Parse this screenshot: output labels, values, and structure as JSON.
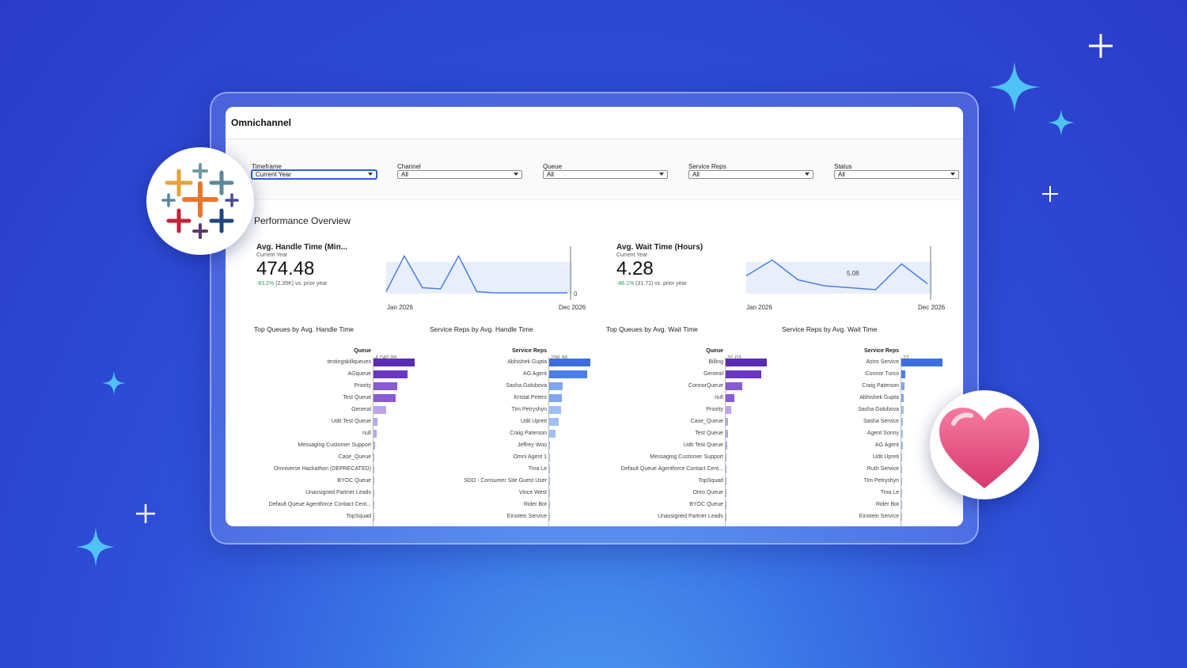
{
  "app": {
    "title": "Omnichannel"
  },
  "filters": [
    {
      "label": "Timeframe",
      "value": "Current Year"
    },
    {
      "label": "Channel",
      "value": "All"
    },
    {
      "label": "Queue",
      "value": "All"
    },
    {
      "label": "Service Reps",
      "value": "All"
    },
    {
      "label": "Status",
      "value": "All"
    }
  ],
  "section": {
    "title": "Performance Overview"
  },
  "kpis": [
    {
      "title": "Avg. Handle Time (Min...",
      "period": "Current Year",
      "value": "474.48",
      "change_pct": "-83.2%",
      "change_text": "(2.35K) vs. prior year",
      "axis_start": "Jan 2026",
      "axis_end": "Dec 2026",
      "end_label": "0",
      "trend": [
        0.05,
        0.95,
        0.15,
        0.12,
        0.95,
        0.05,
        0.02,
        0.02,
        0.02,
        0.02,
        0.02
      ]
    },
    {
      "title": "Avg. Wait Time (Hours)",
      "period": "Current Year",
      "value": "4.28",
      "change_pct": "-88.1%",
      "change_text": "(31.71) vs. prior year",
      "axis_start": "Jan 2026",
      "axis_end": "Dec 2026",
      "end_label": "5.08",
      "trend": [
        0.45,
        0.85,
        0.35,
        0.2,
        0.15,
        0.1,
        0.75,
        0.25
      ]
    }
  ],
  "bar_charts": [
    {
      "title": "Top Queues by Avg. Handle Time",
      "header": "Queue",
      "top_value": "4,040.88",
      "color": "#5b2bb5",
      "rows": [
        {
          "label": "testingskillqueues",
          "value": 1.0
        },
        {
          "label": "AGqueue",
          "value": 0.83
        },
        {
          "label": "Priority",
          "value": 0.57
        },
        {
          "label": "Test Queue",
          "value": 0.53
        },
        {
          "label": "General",
          "value": 0.31
        },
        {
          "label": "Udit Test Queue",
          "value": 0.1
        },
        {
          "label": "null",
          "value": 0.08
        },
        {
          "label": "Messaging Customer Support",
          "value": 0.03
        },
        {
          "label": "Case_Queue",
          "value": 0.02
        },
        {
          "label": "Omniverse Hackathon (DEPRECATED)",
          "value": 0.01
        },
        {
          "label": "BYOC Queue",
          "value": 0.01
        },
        {
          "label": "Unassigned Partner Leads",
          "value": 0.01
        },
        {
          "label": "Default Queue Agentforce Contact Cent...",
          "value": 0.01
        },
        {
          "label": "TopSquad",
          "value": 0.01
        }
      ]
    },
    {
      "title": "Service Reps by Avg. Handle Time",
      "header": "Service Reps",
      "top_value": "296.96",
      "color": "#3b6fe0",
      "rows": [
        {
          "label": "Abhishek Gupta",
          "value": 1.0
        },
        {
          "label": "AG Agent",
          "value": 0.93
        },
        {
          "label": "Sasha Golubova",
          "value": 0.32
        },
        {
          "label": "Kristal Peters",
          "value": 0.3
        },
        {
          "label": "Tim Petryshyn",
          "value": 0.28
        },
        {
          "label": "Udit Upreti",
          "value": 0.24
        },
        {
          "label": "Craig Paterson",
          "value": 0.16
        },
        {
          "label": "Jeffrey Woo",
          "value": 0.01
        },
        {
          "label": "Omni Agent 1",
          "value": 0.01
        },
        {
          "label": "Tina Le",
          "value": 0.01
        },
        {
          "label": "SDO - Consumer Site Guest User",
          "value": 0.01
        },
        {
          "label": "Vince West",
          "value": 0.01
        },
        {
          "label": "Rider Bot",
          "value": 0.01
        },
        {
          "label": "Einstein Service",
          "value": 0.01
        }
      ]
    },
    {
      "title": "Top Queues by Avg. Wait Time",
      "header": "Queue",
      "top_value": "31.03",
      "color": "#5b2bb5",
      "rows": [
        {
          "label": "Billing",
          "value": 1.0
        },
        {
          "label": "General",
          "value": 0.86
        },
        {
          "label": "ConnorQueue",
          "value": 0.4
        },
        {
          "label": "null",
          "value": 0.22
        },
        {
          "label": "Priority",
          "value": 0.14
        },
        {
          "label": "Case_Queue",
          "value": 0.06
        },
        {
          "label": "Test Queue",
          "value": 0.05
        },
        {
          "label": "Udit Test Queue",
          "value": 0.03
        },
        {
          "label": "Messaging Customer Support",
          "value": 0.02
        },
        {
          "label": "Default Queue Agentforce Contact Cent...",
          "value": 0.02
        },
        {
          "label": "TopSquad",
          "value": 0.01
        },
        {
          "label": "Oreo Queue",
          "value": 0.01
        },
        {
          "label": "BYOC Queue",
          "value": 0.01
        },
        {
          "label": "Unassigned Partner Leads",
          "value": 0.01
        }
      ]
    },
    {
      "title": "Service Reps by Avg. Wait Time",
      "header": "Service Reps",
      "top_value": "22",
      "color": "#3b6fe0",
      "rows": [
        {
          "label": "Astro Service",
          "value": 1.0
        },
        {
          "label": "Connor Turco",
          "value": 0.1
        },
        {
          "label": "Craig Paterson",
          "value": 0.07
        },
        {
          "label": "Abhishek Gupta",
          "value": 0.06
        },
        {
          "label": "Sasha Golubova",
          "value": 0.05
        },
        {
          "label": "Sasha Service",
          "value": 0.04
        },
        {
          "label": "Agent Sonny",
          "value": 0.03
        },
        {
          "label": "AG Agent",
          "value": 0.03
        },
        {
          "label": "Udit Upreti",
          "value": 0.02
        },
        {
          "label": "Ruth Service",
          "value": 0.02
        },
        {
          "label": "Tim Petryshyn",
          "value": 0.02
        },
        {
          "label": "Tina Le",
          "value": 0.01
        },
        {
          "label": "Rider Bot",
          "value": 0.01
        },
        {
          "label": "Einstein Service",
          "value": 0.01
        }
      ]
    }
  ],
  "colors": {
    "bg_dark": "#2a3bc8",
    "bg_light": "#4f9cf0",
    "sparkle": "#4fc3f7",
    "bar_light": "#b9a6ea",
    "bar_light_blue": "#9ec0f5"
  },
  "icons": {
    "badge_left": "tableau-logo-icon",
    "badge_right": "heart-icon"
  }
}
